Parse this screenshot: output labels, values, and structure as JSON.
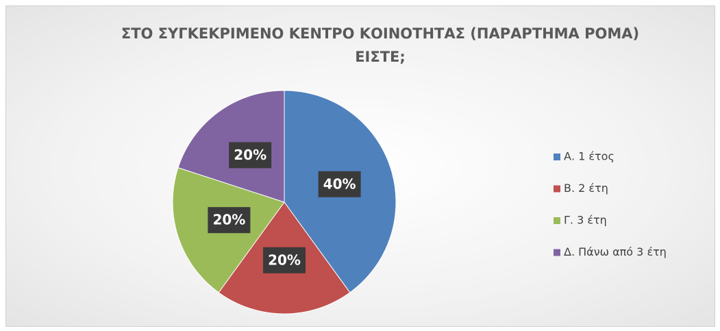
{
  "chart_data": {
    "type": "pie",
    "title": "ΣΤΟ ΣΥΓΚΕΚΡΙΜΕΝΟ ΚΕΝΤΡΟ ΚΟΙΝΟΤΗΤΑΣ (ΠΑΡΑΡΤΗΜΑ ΡΟΜΑ) ΕΙΣΤΕ;",
    "categories": [
      "Α. 1 έτος",
      "Β. 2 έτη",
      "Γ. 3 έτη",
      "Δ. Πάνω από 3 έτη"
    ],
    "values": [
      40,
      20,
      20,
      20
    ],
    "value_labels": [
      "40%",
      "20%",
      "20%",
      "20%"
    ],
    "colors": [
      "#4f81bd",
      "#c0504d",
      "#9bbb59",
      "#8064a2"
    ],
    "legend": "right"
  }
}
